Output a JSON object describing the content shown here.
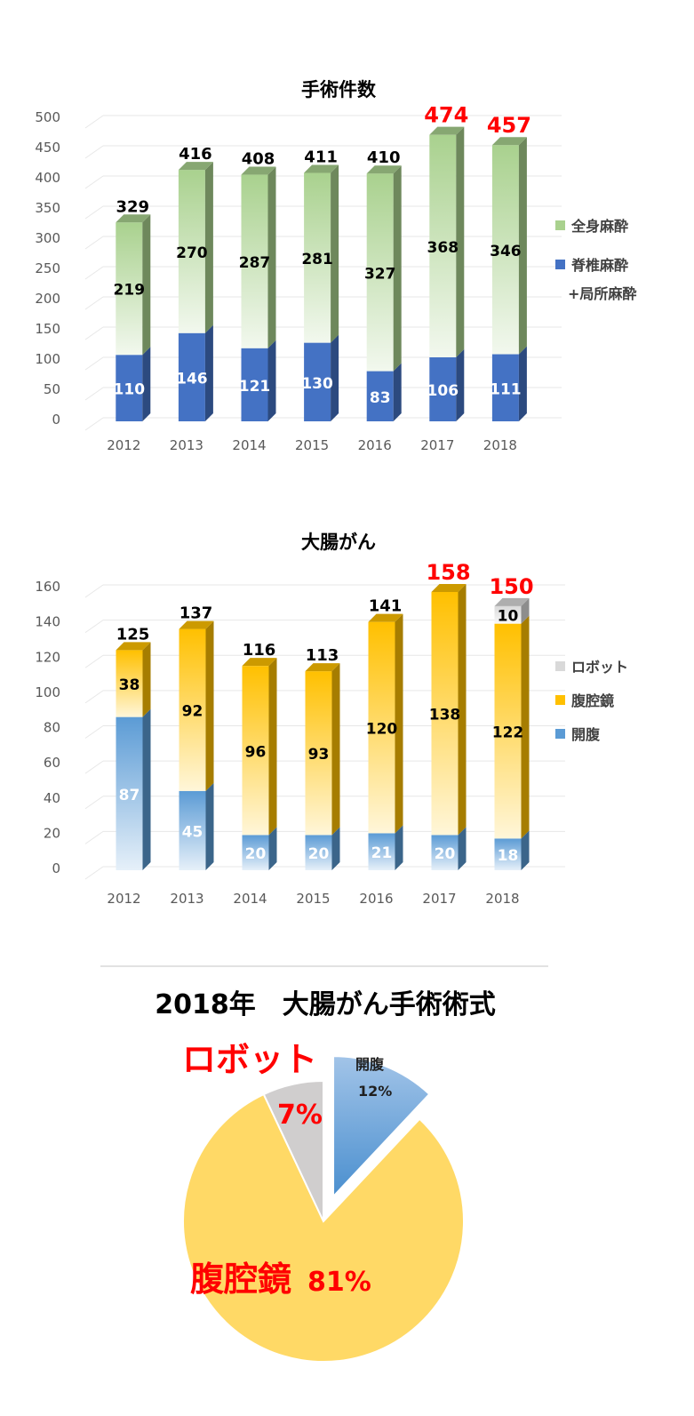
{
  "chart_data": [
    {
      "type": "bar",
      "stacked": true,
      "title": "手術件数",
      "categories": [
        "2012",
        "2013",
        "2014",
        "2015",
        "2016",
        "2017",
        "2018"
      ],
      "series": [
        {
          "name": "脊椎麻酔\n+局所麻酔",
          "values": [
            110,
            146,
            121,
            130,
            83,
            106,
            111
          ],
          "color": "#4472c4"
        },
        {
          "name": "全身麻酔",
          "values": [
            219,
            270,
            287,
            281,
            327,
            368,
            346
          ],
          "color": "#a9d18e"
        }
      ],
      "totals": [
        329,
        416,
        408,
        411,
        410,
        474,
        457
      ],
      "highlight_totals": [
        "2017",
        "2018"
      ],
      "highlight_color": "#ff0000",
      "ylim": [
        0,
        500
      ],
      "yticks": [
        0,
        50,
        100,
        150,
        200,
        250,
        300,
        350,
        400,
        450,
        500
      ],
      "grid": true,
      "legend_position": "right"
    },
    {
      "type": "bar",
      "stacked": true,
      "title": "大腸がん",
      "categories": [
        "2012",
        "2013",
        "2014",
        "2015",
        "2016",
        "2017",
        "2018"
      ],
      "series": [
        {
          "name": "開腹",
          "values": [
            87,
            45,
            20,
            20,
            21,
            20,
            18
          ],
          "color": "#5b9bd5"
        },
        {
          "name": "腹腔鏡",
          "values": [
            38,
            92,
            96,
            93,
            120,
            138,
            122
          ],
          "color": "#ffc000"
        },
        {
          "name": "ロボット",
          "values": [
            0,
            0,
            0,
            0,
            0,
            0,
            10
          ],
          "color": "#d9d9d9"
        }
      ],
      "totals": [
        125,
        137,
        116,
        113,
        141,
        158,
        150
      ],
      "highlight_totals": [
        "2017",
        "2018"
      ],
      "highlight_color": "#ff0000",
      "ylim": [
        0,
        160
      ],
      "yticks": [
        0,
        20,
        40,
        60,
        80,
        100,
        120,
        140,
        160
      ],
      "grid": true,
      "legend_position": "right"
    },
    {
      "type": "pie",
      "title": "2018年　大腸がん手術術式",
      "slices": [
        {
          "name": "開腹",
          "value": 12,
          "label": "12%",
          "color": "#5b9bd5"
        },
        {
          "name": "腹腔鏡",
          "value": 81,
          "label": "81%",
          "color": "#ffd966"
        },
        {
          "name": "ロボット",
          "value": 7,
          "label": "7%",
          "color": "#d0cece"
        }
      ],
      "exploded": "開腹"
    }
  ]
}
